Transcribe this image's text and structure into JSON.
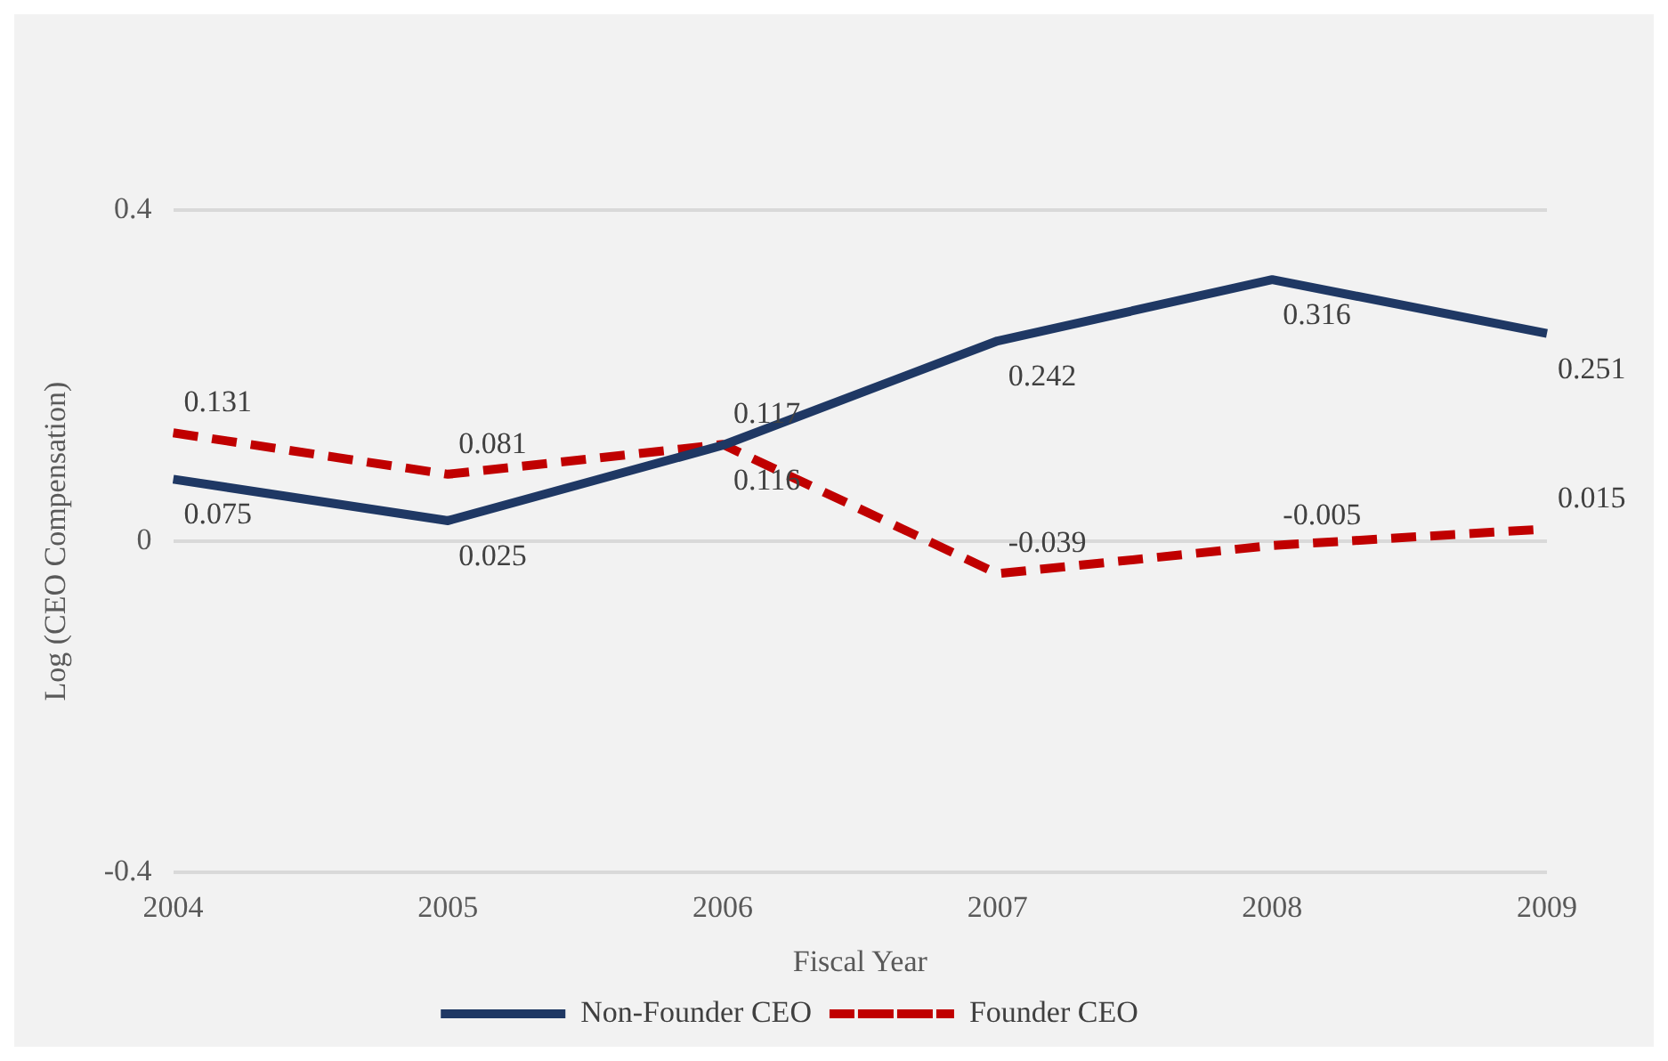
{
  "chart_data": {
    "type": "line",
    "xlabel": "Fiscal Year",
    "ylabel": "Log (CEO Compensation)",
    "categories": [
      "2004",
      "2005",
      "2006",
      "2007",
      "2008",
      "2009"
    ],
    "series": [
      {
        "name": "Non-Founder CEO",
        "color": "#1f3864",
        "line_style": "solid",
        "values": [
          0.075,
          0.025,
          0.116,
          0.242,
          0.316,
          0.251
        ]
      },
      {
        "name": "Founder CEO",
        "color": "#c00000",
        "line_style": "dashed",
        "values": [
          0.131,
          0.081,
          0.117,
          -0.039,
          -0.005,
          0.015
        ]
      }
    ],
    "ylim": [
      -0.4,
      0.4
    ],
    "yticks": [
      -0.4,
      0,
      0.4
    ],
    "grid": "y",
    "legend": "bottom",
    "marker": "none",
    "data_labels": true
  }
}
